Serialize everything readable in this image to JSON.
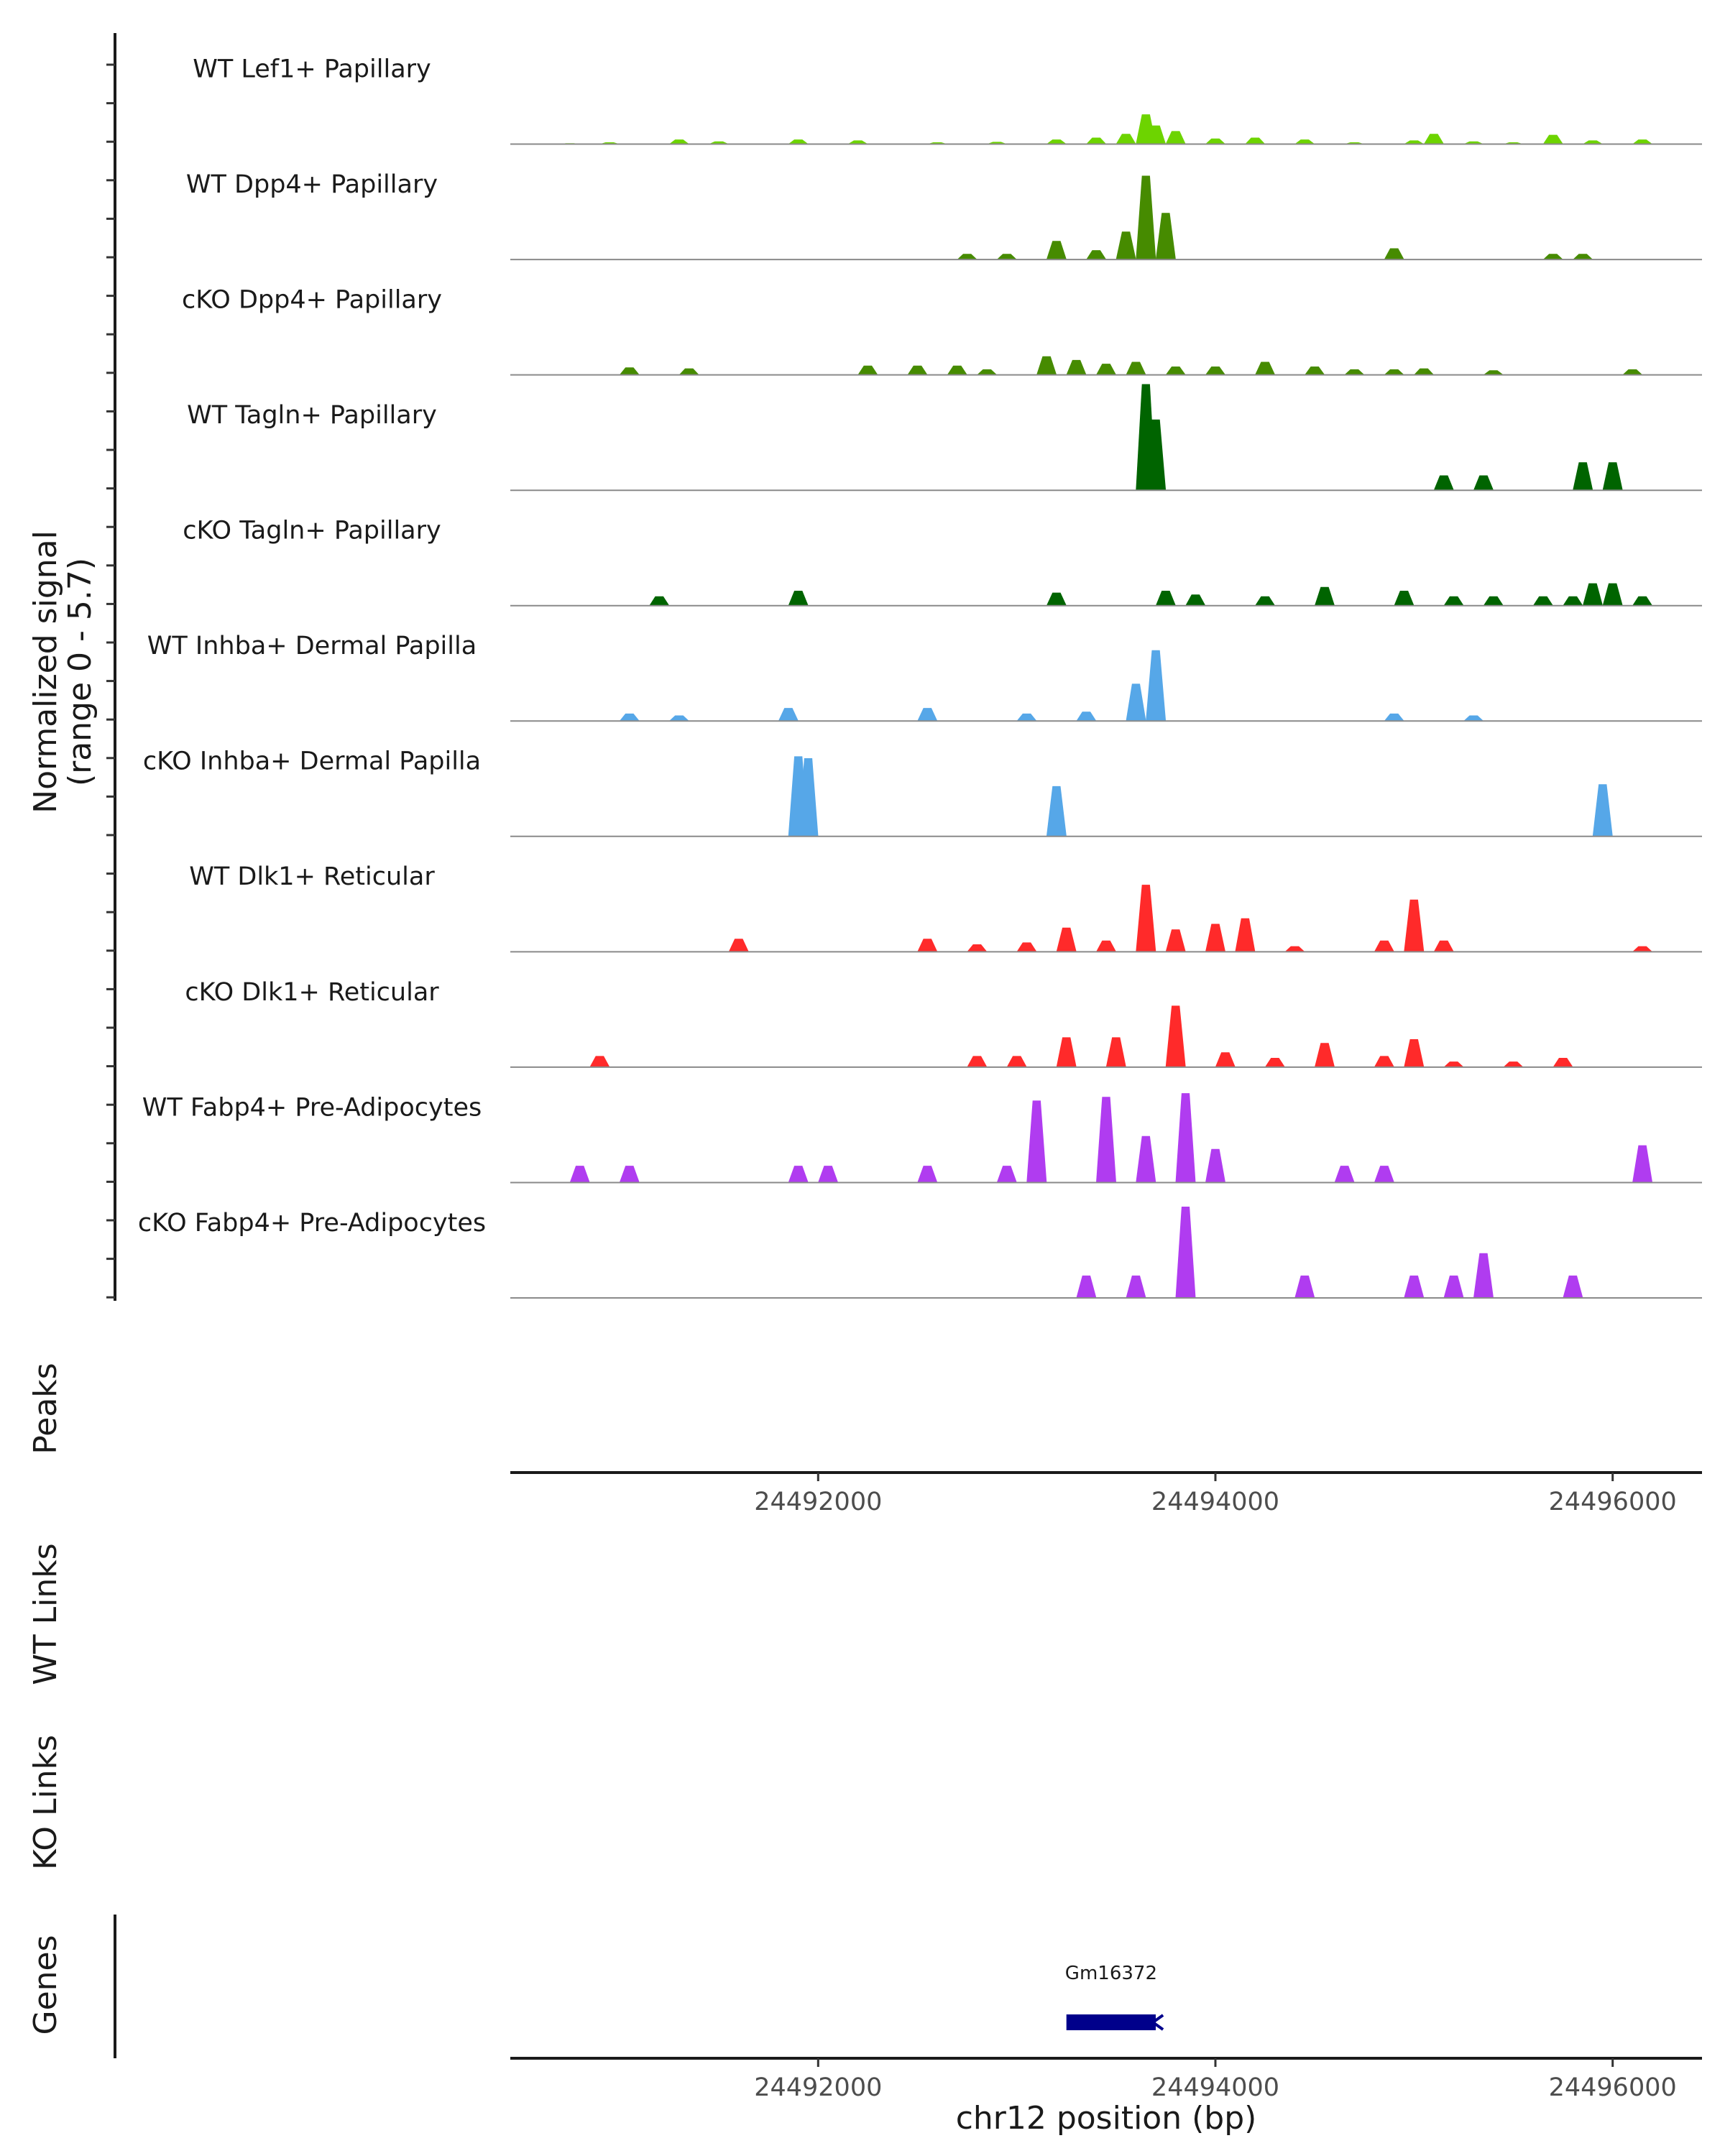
{
  "chart_data": {
    "type": "area",
    "title": "",
    "xlabel": "chr12 position (bp)",
    "x_range": [
      24490450,
      24496450
    ],
    "x_ticks": [
      24492000,
      24494000,
      24496000
    ],
    "x_tick_labels": [
      "24492000",
      "24494000",
      "24496000"
    ],
    "signal_axis_label_line1": "Normalized signal",
    "signal_axis_label_line2": "(range 0 - 5.7)",
    "y_range": [
      0,
      5.7
    ],
    "series": [
      {
        "name": "WT Lef1+ Papillary",
        "color": "#6DD400",
        "points": [
          [
            24490750,
            0.05
          ],
          [
            24490950,
            0.1
          ],
          [
            24491300,
            0.25
          ],
          [
            24491500,
            0.15
          ],
          [
            24491900,
            0.25
          ],
          [
            24492200,
            0.2
          ],
          [
            24492600,
            0.1
          ],
          [
            24492900,
            0.12
          ],
          [
            24493200,
            0.25
          ],
          [
            24493400,
            0.35
          ],
          [
            24493550,
            0.55
          ],
          [
            24493650,
            1.6
          ],
          [
            24493700,
            1.0
          ],
          [
            24493800,
            0.7
          ],
          [
            24494000,
            0.3
          ],
          [
            24494200,
            0.35
          ],
          [
            24494450,
            0.25
          ],
          [
            24494700,
            0.1
          ],
          [
            24495000,
            0.2
          ],
          [
            24495100,
            0.55
          ],
          [
            24495300,
            0.15
          ],
          [
            24495500,
            0.1
          ],
          [
            24495700,
            0.5
          ],
          [
            24495900,
            0.2
          ],
          [
            24496150,
            0.25
          ]
        ]
      },
      {
        "name": "WT Dpp4+ Papillary",
        "color": "#468B00",
        "points": [
          [
            24492750,
            0.3
          ],
          [
            24492950,
            0.3
          ],
          [
            24493200,
            1.0
          ],
          [
            24493400,
            0.5
          ],
          [
            24493550,
            1.5
          ],
          [
            24493650,
            4.5
          ],
          [
            24493750,
            2.5
          ],
          [
            24494900,
            0.6
          ],
          [
            24495700,
            0.3
          ],
          [
            24495850,
            0.3
          ]
        ]
      },
      {
        "name": "cKO Dpp4+ Papillary",
        "color": "#468B00",
        "points": [
          [
            24491050,
            0.4
          ],
          [
            24491350,
            0.35
          ],
          [
            24492250,
            0.5
          ],
          [
            24492500,
            0.5
          ],
          [
            24492700,
            0.5
          ],
          [
            24492850,
            0.3
          ],
          [
            24493150,
            1.0
          ],
          [
            24493300,
            0.8
          ],
          [
            24493450,
            0.6
          ],
          [
            24493600,
            0.7
          ],
          [
            24493800,
            0.45
          ],
          [
            24494000,
            0.45
          ],
          [
            24494250,
            0.7
          ],
          [
            24494500,
            0.45
          ],
          [
            24494700,
            0.3
          ],
          [
            24494900,
            0.3
          ],
          [
            24495050,
            0.35
          ],
          [
            24495400,
            0.25
          ],
          [
            24496100,
            0.3
          ]
        ]
      },
      {
        "name": "WT Tagln+ Papillary",
        "color": "#006400",
        "points": [
          [
            24493650,
            5.7
          ],
          [
            24493700,
            3.8
          ],
          [
            24495150,
            0.8
          ],
          [
            24495350,
            0.8
          ],
          [
            24495850,
            1.5
          ],
          [
            24496000,
            1.5
          ]
        ]
      },
      {
        "name": "cKO Tagln+ Papillary",
        "color": "#006400",
        "points": [
          [
            24491200,
            0.5
          ],
          [
            24491900,
            0.8
          ],
          [
            24493200,
            0.7
          ],
          [
            24493750,
            0.8
          ],
          [
            24493900,
            0.6
          ],
          [
            24494250,
            0.5
          ],
          [
            24494550,
            1.0
          ],
          [
            24494950,
            0.8
          ],
          [
            24495200,
            0.5
          ],
          [
            24495400,
            0.5
          ],
          [
            24495650,
            0.5
          ],
          [
            24495800,
            0.5
          ],
          [
            24495900,
            1.2
          ],
          [
            24496000,
            1.2
          ],
          [
            24496150,
            0.5
          ]
        ]
      },
      {
        "name": "WT Inhba+ Dermal Papilla",
        "color": "#56A7E8",
        "points": [
          [
            24491050,
            0.4
          ],
          [
            24491300,
            0.3
          ],
          [
            24491850,
            0.7
          ],
          [
            24492550,
            0.7
          ],
          [
            24493050,
            0.4
          ],
          [
            24493350,
            0.5
          ],
          [
            24493600,
            2.0
          ],
          [
            24493700,
            3.8
          ],
          [
            24494900,
            0.4
          ],
          [
            24495300,
            0.3
          ]
        ]
      },
      {
        "name": "cKO Inhba+ Dermal Papilla",
        "color": "#56A7E8",
        "points": [
          [
            24491900,
            4.3
          ],
          [
            24491950,
            4.2
          ],
          [
            24493200,
            2.7
          ],
          [
            24495950,
            2.8
          ]
        ]
      },
      {
        "name": "WT Dlk1+ Reticular",
        "color": "#FF2A2A",
        "points": [
          [
            24491600,
            0.7
          ],
          [
            24492550,
            0.7
          ],
          [
            24492800,
            0.4
          ],
          [
            24493050,
            0.5
          ],
          [
            24493250,
            1.3
          ],
          [
            24493450,
            0.6
          ],
          [
            24493650,
            3.6
          ],
          [
            24493800,
            1.2
          ],
          [
            24494000,
            1.5
          ],
          [
            24494150,
            1.8
          ],
          [
            24494400,
            0.3
          ],
          [
            24494850,
            0.6
          ],
          [
            24495000,
            2.8
          ],
          [
            24495150,
            0.6
          ],
          [
            24496150,
            0.3
          ]
        ]
      },
      {
        "name": "cKO Dlk1+ Reticular",
        "color": "#FF2A2A",
        "points": [
          [
            24490900,
            0.6
          ],
          [
            24492800,
            0.6
          ],
          [
            24493000,
            0.6
          ],
          [
            24493250,
            1.6
          ],
          [
            24493500,
            1.6
          ],
          [
            24493800,
            3.3
          ],
          [
            24494050,
            0.8
          ],
          [
            24494300,
            0.5
          ],
          [
            24494550,
            1.3
          ],
          [
            24494850,
            0.6
          ],
          [
            24495000,
            1.5
          ],
          [
            24495200,
            0.3
          ],
          [
            24495500,
            0.3
          ],
          [
            24495750,
            0.5
          ]
        ]
      },
      {
        "name": "WT Fabp4+ Pre-Adipocytes",
        "color": "#B03CF0",
        "points": [
          [
            24490800,
            0.9
          ],
          [
            24491050,
            0.9
          ],
          [
            24491900,
            0.9
          ],
          [
            24492050,
            0.9
          ],
          [
            24492550,
            0.9
          ],
          [
            24492950,
            0.9
          ],
          [
            24493100,
            4.4
          ],
          [
            24493450,
            4.6
          ],
          [
            24493650,
            2.5
          ],
          [
            24493850,
            4.8
          ],
          [
            24494000,
            1.8
          ],
          [
            24494650,
            0.9
          ],
          [
            24494850,
            0.9
          ],
          [
            24496150,
            2.0
          ]
        ]
      },
      {
        "name": "cKO Fabp4+ Pre-Adipocytes",
        "color": "#B03CF0",
        "points": [
          [
            24493350,
            1.2
          ],
          [
            24493600,
            1.2
          ],
          [
            24493850,
            4.9
          ],
          [
            24494450,
            1.2
          ],
          [
            24495000,
            1.2
          ],
          [
            24495200,
            1.2
          ],
          [
            24495350,
            2.4
          ],
          [
            24495800,
            1.2
          ]
        ]
      }
    ],
    "tracks": [
      "Peaks",
      "WT Links",
      "KO Links",
      "Genes"
    ],
    "genes": [
      {
        "name": "Gm16372",
        "start": 24493250,
        "end": 24493700,
        "strand": "-",
        "color": "#00008B"
      }
    ]
  }
}
